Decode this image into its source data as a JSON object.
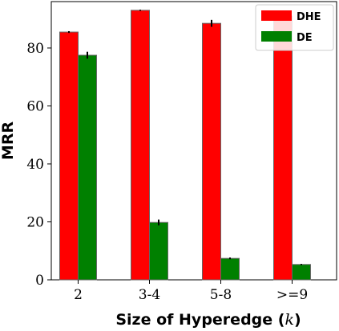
{
  "chart_data": {
    "type": "bar",
    "categories": [
      "2",
      "3-4",
      "5-8",
      ">=9"
    ],
    "series": [
      {
        "name": "DHE",
        "color": "#ff0000",
        "values": [
          85.5,
          93.0,
          88.5,
          91.0
        ],
        "errors": [
          0.3,
          0.2,
          1.2,
          0.5
        ]
      },
      {
        "name": "DE",
        "color": "#008000",
        "values": [
          77.5,
          19.8,
          7.4,
          5.3
        ],
        "errors": [
          1.2,
          1.0,
          0.3,
          0.2
        ]
      }
    ],
    "xlabel": "Size of Hyperedge (k)",
    "xlabel_parts": {
      "main": "Size of Hyperedge (",
      "var": "k",
      "close": ")"
    },
    "ylabel": "MRR",
    "ylim": [
      0,
      96
    ],
    "yticks": [
      0,
      20,
      40,
      60,
      80
    ],
    "legend_position": "top-right",
    "grid": false
  }
}
